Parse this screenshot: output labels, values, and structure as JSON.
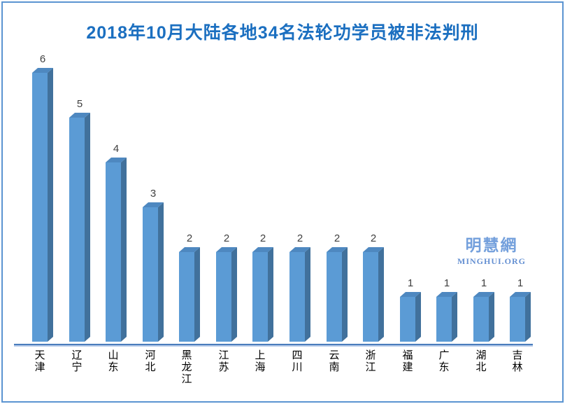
{
  "chart_data": {
    "type": "bar",
    "title": "2018年10月大陆各地34名法轮功学员被非法判刑",
    "categories": [
      "天津",
      "辽宁",
      "山东",
      "河北",
      "黑龙江",
      "江苏",
      "上海",
      "四川",
      "云南",
      "浙江",
      "福建",
      "广东",
      "湖北",
      "吉林"
    ],
    "values": [
      6,
      5,
      4,
      3,
      2,
      2,
      2,
      2,
      2,
      2,
      1,
      1,
      1,
      1
    ],
    "total_mentioned_in_title": 34,
    "ylim": [
      0,
      6
    ],
    "grid": false,
    "legend": false,
    "bar_value_labels_shown": true,
    "style": "3d-column"
  },
  "watermark": {
    "cjk": "明慧網",
    "org": "MINGHUI.ORG"
  },
  "colors": {
    "title": "#1b6fc0",
    "bar_front": "#5b9bd5",
    "bar_top": "#4e88c0",
    "bar_side": "#41719c",
    "axis": "#4a7dbd",
    "axis_sub": "#b3c9e8",
    "value_label": "#404040",
    "category_label": "#000000",
    "border": "#5b94d1",
    "watermark_cjk": "#74a0dc",
    "watermark_org": "#6590d2"
  }
}
